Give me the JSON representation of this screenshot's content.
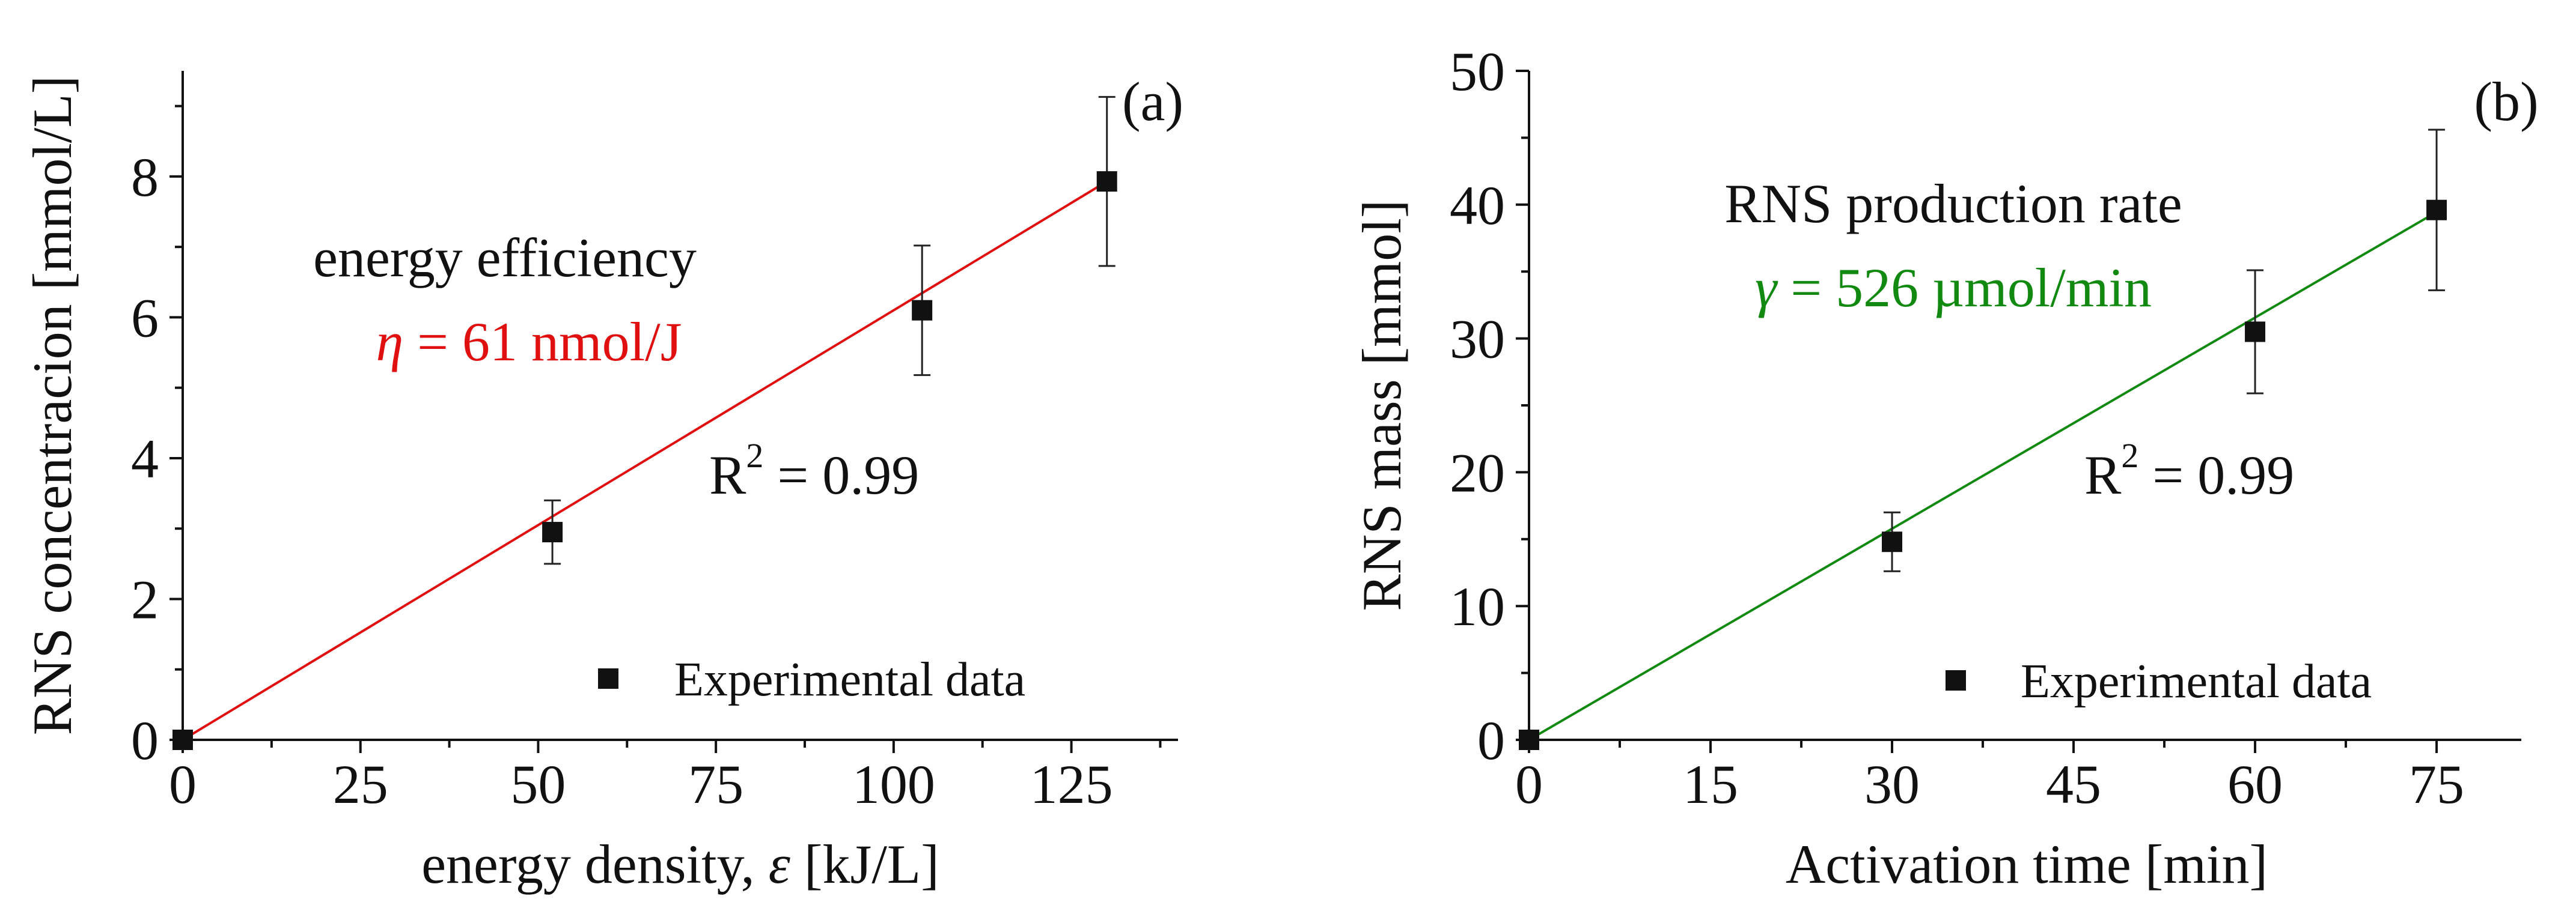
{
  "chart_data": [
    {
      "type": "scatter",
      "panel_label": "(a)",
      "xlabel_prefix": "energy density, ",
      "xlabel_symbol": "ε",
      "xlabel_suffix": " [kJ/L]",
      "ylabel": "RNS concentracion [mmol/L]",
      "xlim": [
        0,
        140
      ],
      "ylim": [
        0,
        9.5
      ],
      "x_ticks": [
        0,
        25,
        50,
        75,
        100,
        125
      ],
      "y_ticks": [
        0,
        2,
        4,
        6,
        8
      ],
      "series": [
        {
          "name": "Experimental data",
          "marker": "square",
          "color": "#111111",
          "points": [
            {
              "x": 0,
              "y": 0,
              "err": 0
            },
            {
              "x": 52,
              "y": 2.95,
              "err": 0.45
            },
            {
              "x": 104,
              "y": 6.1,
              "err": 0.92
            },
            {
              "x": 130,
              "y": 7.93,
              "err": 1.2
            }
          ]
        }
      ],
      "fit": {
        "color": "#e01010",
        "slope": 0.061,
        "x_range": [
          0,
          130
        ]
      },
      "annotations": {
        "title": "energy efficiency",
        "symbol": "η",
        "value": " = 61 nmol/J",
        "r2_prefix": "R",
        "r2_sup": "2",
        "r2_value": " = 0.99"
      },
      "legend": {
        "label": "Experimental data",
        "position": "bottom-right"
      }
    },
    {
      "type": "scatter",
      "panel_label": "(b)",
      "xlabel": "Activation time [min]",
      "ylabel": "RNS mass [mmol]",
      "xlim": [
        0,
        82
      ],
      "ylim": [
        0,
        50
      ],
      "x_ticks": [
        0,
        15,
        30,
        45,
        60,
        75
      ],
      "y_ticks": [
        0,
        10,
        20,
        30,
        40,
        50
      ],
      "series": [
        {
          "name": "Experimental data",
          "marker": "square",
          "color": "#111111",
          "points": [
            {
              "x": 0,
              "y": 0,
              "err": 0
            },
            {
              "x": 30,
              "y": 14.8,
              "err": 2.2
            },
            {
              "x": 60,
              "y": 30.5,
              "err": 4.6
            },
            {
              "x": 75,
              "y": 39.6,
              "err": 6.0
            }
          ]
        }
      ],
      "fit": {
        "color": "#128a12",
        "slope": 0.526,
        "x_range": [
          0,
          75
        ]
      },
      "annotations": {
        "title": "RNS production rate",
        "symbol": "γ",
        "value": " = 526 µmol/min",
        "r2_prefix": "R",
        "r2_sup": "2",
        "r2_value": " = 0.99"
      },
      "legend": {
        "label": "Experimental data",
        "position": "bottom-right"
      }
    }
  ]
}
